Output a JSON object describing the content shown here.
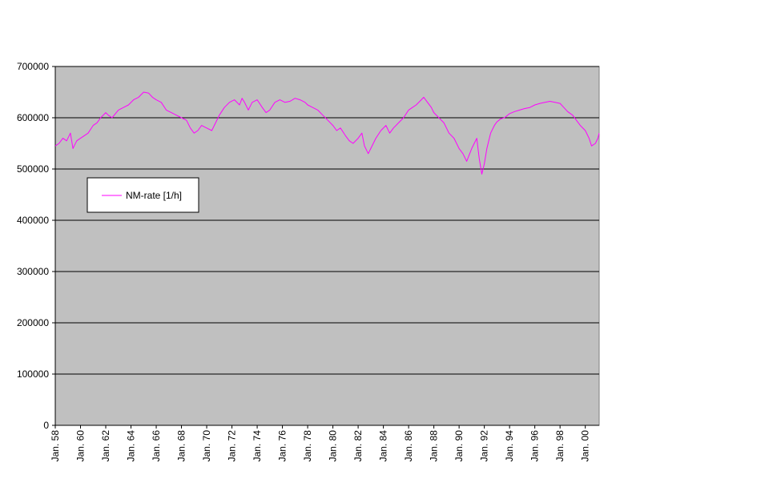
{
  "chart_data": {
    "type": "line",
    "title": "",
    "xlabel": "",
    "ylabel": "",
    "ylim": [
      0,
      700000
    ],
    "yticks": [
      0,
      100000,
      200000,
      300000,
      400000,
      500000,
      600000,
      700000
    ],
    "yticklabels": [
      "0",
      "100000",
      "200000",
      "300000",
      "400000",
      "500000",
      "600000",
      "700000"
    ],
    "xlim": [
      1958.0,
      2001.1
    ],
    "xticks": [
      {
        "x": 1958,
        "label": "Jan. 58"
      },
      {
        "x": 1960,
        "label": "Jan. 60"
      },
      {
        "x": 1962,
        "label": "Jan. 62"
      },
      {
        "x": 1964,
        "label": "Jan. 64"
      },
      {
        "x": 1966,
        "label": "Jan. 66"
      },
      {
        "x": 1968,
        "label": "Jan. 68"
      },
      {
        "x": 1970,
        "label": "Jan. 70"
      },
      {
        "x": 1972,
        "label": "Jan. 72"
      },
      {
        "x": 1974,
        "label": "Jan. 74"
      },
      {
        "x": 1976,
        "label": "Jan. 76"
      },
      {
        "x": 1978,
        "label": "Jan. 78"
      },
      {
        "x": 1980,
        "label": "Jan. 80"
      },
      {
        "x": 1982,
        "label": "Jan. 82"
      },
      {
        "x": 1984,
        "label": "Jan. 84"
      },
      {
        "x": 1986,
        "label": "Jan. 86"
      },
      {
        "x": 1988,
        "label": "Jan. 88"
      },
      {
        "x": 1990,
        "label": "Jan. 90"
      },
      {
        "x": 1992,
        "label": "Jan. 92"
      },
      {
        "x": 1994,
        "label": "Jan. 94"
      },
      {
        "x": 1996,
        "label": "Jan. 96"
      },
      {
        "x": 1998,
        "label": "Jan. 98"
      },
      {
        "x": 2000,
        "label": "Jan. 00"
      }
    ],
    "grid": true,
    "legend_position": "upper-left",
    "colors": {
      "plot_background": "#c0c0c0",
      "series_line": "#ff00ff",
      "gridline": "#000000"
    },
    "series": [
      {
        "name": "NM-rate [1/h]",
        "x": [
          1958.0,
          1958.3,
          1958.6,
          1958.9,
          1959.2,
          1959.4,
          1959.5,
          1959.7,
          1960.0,
          1960.3,
          1960.6,
          1961.0,
          1961.3,
          1961.6,
          1962.0,
          1962.2,
          1962.5,
          1963.0,
          1963.4,
          1963.8,
          1964.2,
          1964.6,
          1965.0,
          1965.4,
          1965.7,
          1966.0,
          1966.4,
          1966.8,
          1967.2,
          1967.6,
          1968.0,
          1968.4,
          1968.7,
          1969.0,
          1969.3,
          1969.6,
          1970.0,
          1970.4,
          1970.7,
          1971.0,
          1971.4,
          1971.8,
          1972.2,
          1972.6,
          1972.8,
          1973.0,
          1973.3,
          1973.6,
          1974.0,
          1974.4,
          1974.7,
          1975.0,
          1975.4,
          1975.8,
          1976.2,
          1976.6,
          1977.0,
          1977.4,
          1977.8,
          1978.0,
          1978.4,
          1978.8,
          1979.2,
          1979.6,
          1980.0,
          1980.3,
          1980.6,
          1981.0,
          1981.3,
          1981.6,
          1982.0,
          1982.3,
          1982.5,
          1982.8,
          1983.0,
          1983.4,
          1983.8,
          1984.2,
          1984.5,
          1984.8,
          1985.2,
          1985.6,
          1986.0,
          1986.3,
          1986.6,
          1987.0,
          1987.2,
          1987.5,
          1987.8,
          1988.0,
          1988.4,
          1988.8,
          1989.2,
          1989.6,
          1990.0,
          1990.3,
          1990.6,
          1991.0,
          1991.4,
          1991.6,
          1991.8,
          1992.0,
          1992.2,
          1992.5,
          1992.8,
          1993.0,
          1993.3,
          1993.6,
          1994.0,
          1994.4,
          1994.8,
          1995.2,
          1995.6,
          1996.0,
          1996.4,
          1996.8,
          1997.2,
          1997.6,
          1998.0,
          1998.3,
          1998.6,
          1999.0,
          1999.3,
          1999.6,
          2000.0,
          2000.3,
          2000.5,
          2000.8,
          2001.0,
          2001.1
        ],
        "values": [
          545000,
          550000,
          560000,
          555000,
          570000,
          540000,
          545000,
          555000,
          560000,
          565000,
          570000,
          585000,
          590000,
          600000,
          610000,
          605000,
          600000,
          615000,
          620000,
          625000,
          635000,
          640000,
          650000,
          648000,
          640000,
          635000,
          630000,
          615000,
          610000,
          605000,
          600000,
          595000,
          580000,
          570000,
          575000,
          585000,
          580000,
          575000,
          590000,
          605000,
          620000,
          630000,
          635000,
          625000,
          638000,
          630000,
          615000,
          630000,
          635000,
          620000,
          610000,
          615000,
          630000,
          635000,
          630000,
          632000,
          638000,
          635000,
          630000,
          625000,
          620000,
          615000,
          605000,
          595000,
          585000,
          575000,
          580000,
          565000,
          555000,
          550000,
          560000,
          570000,
          545000,
          530000,
          540000,
          560000,
          575000,
          585000,
          570000,
          580000,
          590000,
          600000,
          615000,
          620000,
          625000,
          635000,
          640000,
          630000,
          620000,
          610000,
          600000,
          590000,
          570000,
          560000,
          540000,
          530000,
          515000,
          540000,
          560000,
          520000,
          490000,
          510000,
          540000,
          570000,
          585000,
          592000,
          598000,
          600000,
          608000,
          612000,
          615000,
          618000,
          620000,
          625000,
          628000,
          630000,
          632000,
          630000,
          628000,
          620000,
          612000,
          605000,
          595000,
          585000,
          575000,
          560000,
          545000,
          550000,
          560000,
          570000
        ]
      }
    ]
  }
}
